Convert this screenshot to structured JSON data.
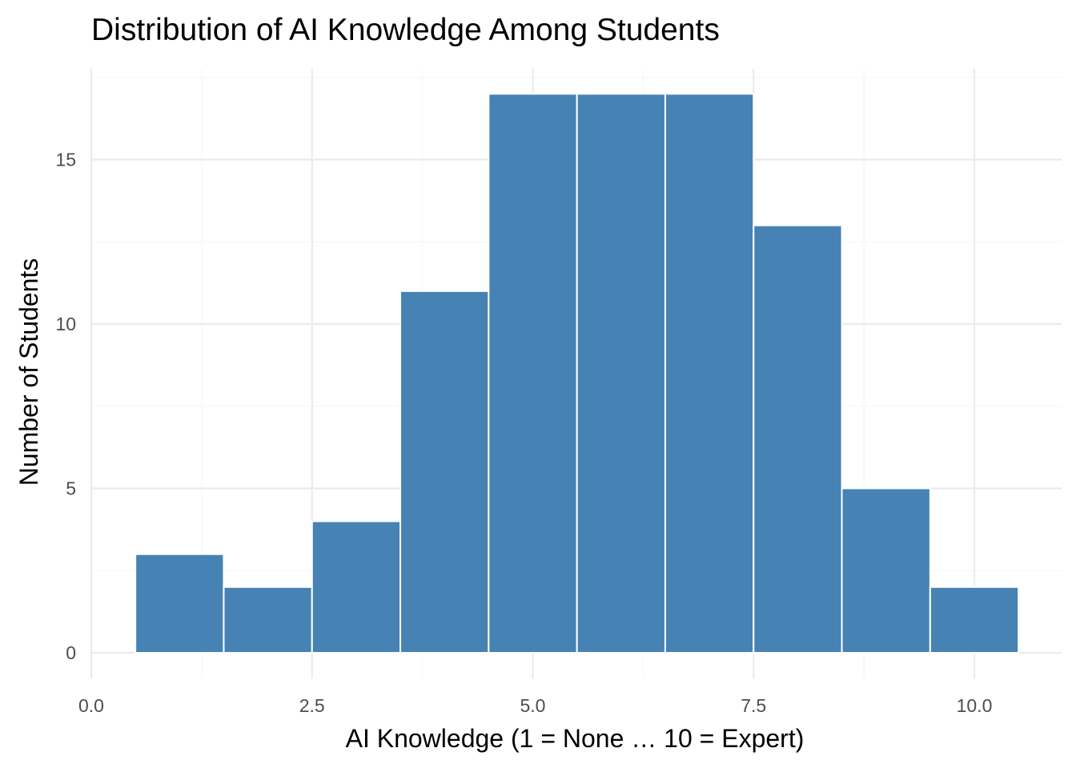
{
  "chart_data": {
    "type": "bar",
    "title": "Distribution of AI Knowledge Among Students",
    "xlabel": "AI Knowledge (1 = None … 10 = Expert)",
    "ylabel": "Number of Students",
    "bins": [
      {
        "x": 1,
        "count": 3
      },
      {
        "x": 2,
        "count": 2
      },
      {
        "x": 3,
        "count": 4
      },
      {
        "x": 4,
        "count": 11
      },
      {
        "x": 5,
        "count": 17
      },
      {
        "x": 6,
        "count": 17
      },
      {
        "x": 7,
        "count": 17
      },
      {
        "x": 8,
        "count": 13
      },
      {
        "x": 9,
        "count": 5
      },
      {
        "x": 10,
        "count": 2
      }
    ],
    "bin_width": 1,
    "xlim": [
      0,
      10.5
    ],
    "ylim": [
      0,
      17
    ],
    "x_ticks": [
      {
        "value": 0,
        "label": "0.0"
      },
      {
        "value": 2.5,
        "label": "2.5"
      },
      {
        "value": 5,
        "label": "5.0"
      },
      {
        "value": 7.5,
        "label": "7.5"
      },
      {
        "value": 10,
        "label": "10.0"
      }
    ],
    "y_ticks": [
      {
        "value": 0,
        "label": "0"
      },
      {
        "value": 5,
        "label": "5"
      },
      {
        "value": 10,
        "label": "10"
      },
      {
        "value": 15,
        "label": "15"
      }
    ],
    "bar_color": "#4682B4",
    "bar_outline_color": "#FFFFFF",
    "grid": true
  }
}
